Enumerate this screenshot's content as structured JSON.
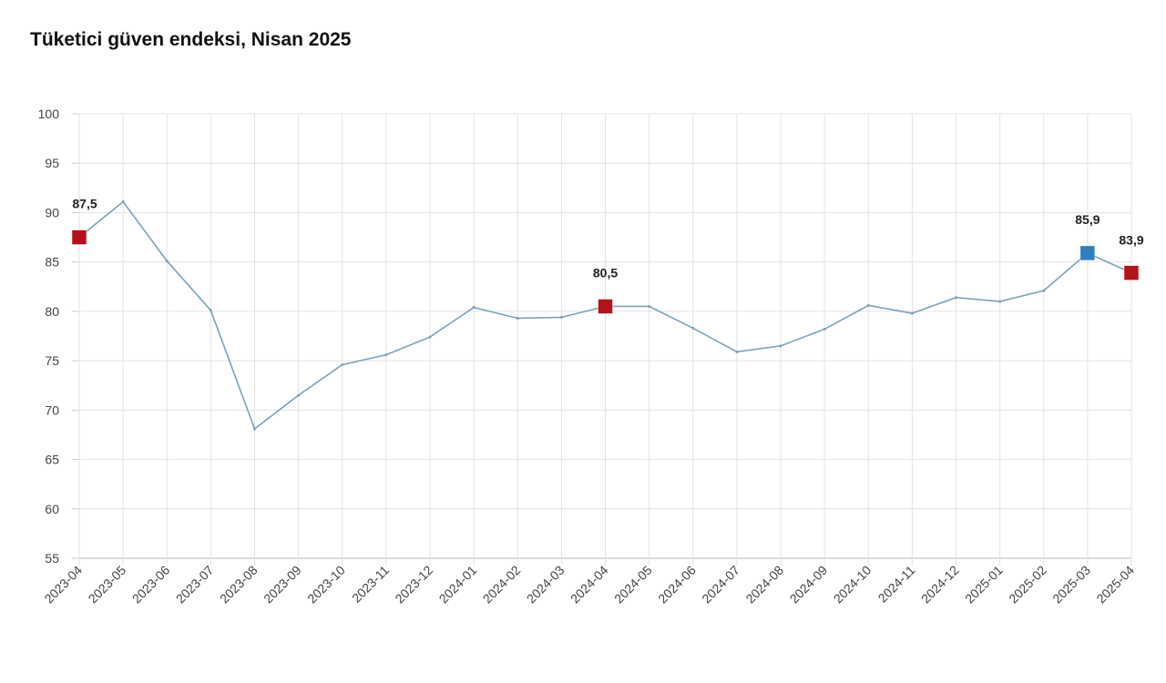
{
  "chart_data": {
    "type": "line",
    "title": "Tüketici güven endeksi, Nisan 2025",
    "xlabel": "",
    "ylabel": "",
    "ylim": [
      55,
      100
    ],
    "yticks": [
      "55",
      "60",
      "65",
      "70",
      "75",
      "80",
      "85",
      "90",
      "95",
      "100"
    ],
    "grid": true,
    "categories": [
      "2023-04",
      "2023-05",
      "2023-06",
      "2023-07",
      "2023-08",
      "2023-09",
      "2023-10",
      "2023-11",
      "2023-12",
      "2024-01",
      "2024-02",
      "2024-03",
      "2024-04",
      "2024-05",
      "2024-06",
      "2024-07",
      "2024-08",
      "2024-09",
      "2024-10",
      "2024-11",
      "2024-12",
      "2025-01",
      "2025-02",
      "2025-03",
      "2025-04"
    ],
    "series": [
      {
        "name": "Tüketici güven endeksi",
        "color": "#7ba3b9",
        "values": [
          87.5,
          91.1,
          85.1,
          80.1,
          68.1,
          71.5,
          74.6,
          75.6,
          77.4,
          80.4,
          79.3,
          79.4,
          80.5,
          80.5,
          78.3,
          75.9,
          76.5,
          78.2,
          80.6,
          79.8,
          81.4,
          81.0,
          82.1,
          85.9,
          83.9
        ]
      }
    ],
    "highlights": [
      {
        "index": 0,
        "label": "87,5",
        "color": "#b5121b"
      },
      {
        "index": 12,
        "label": "80,5",
        "color": "#b5121b"
      },
      {
        "index": 23,
        "label": "85,9",
        "color": "#2f7fc1"
      },
      {
        "index": 24,
        "label": "83,9",
        "color": "#b5121b"
      }
    ]
  }
}
